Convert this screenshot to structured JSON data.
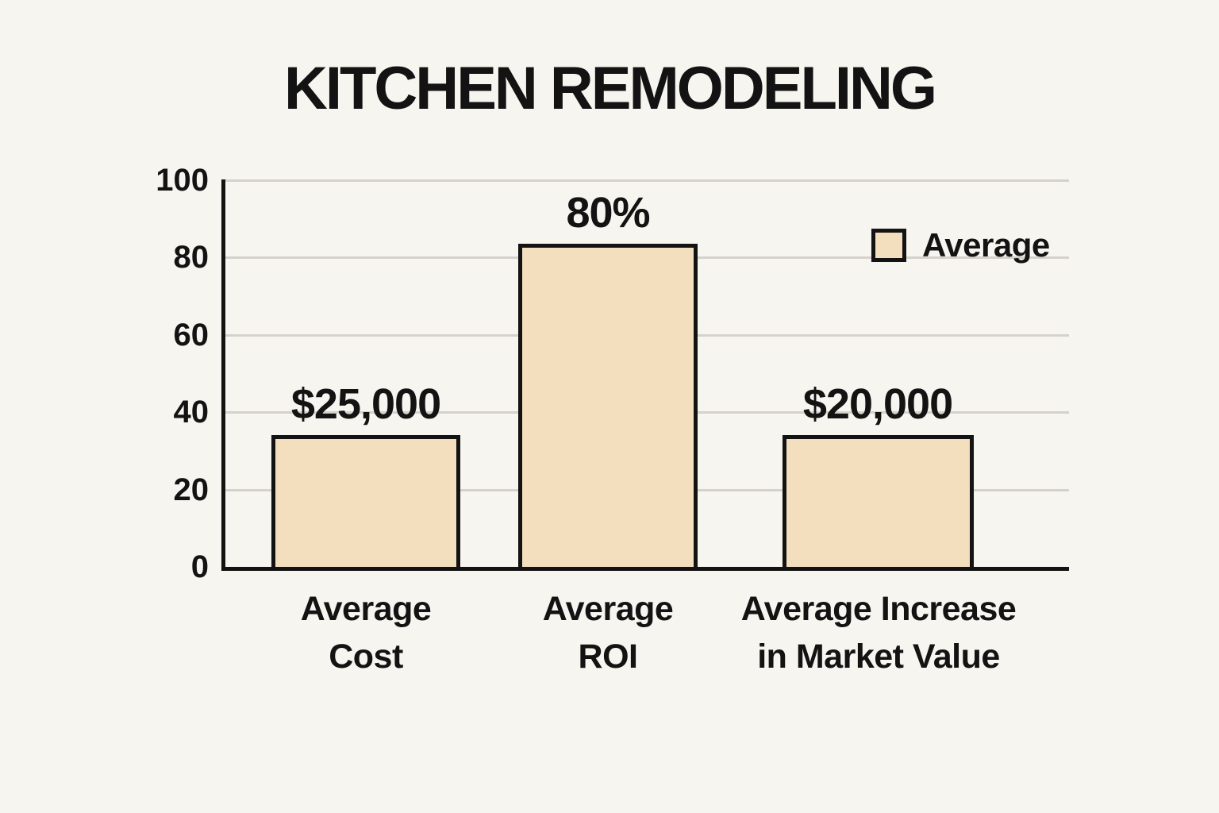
{
  "chart_data": {
    "type": "bar",
    "title": "KITCHEN REMODELING",
    "categories": [
      "Average Cost",
      "Average ROI",
      "Average Increase in Market Value"
    ],
    "values": [
      "$25,000",
      "80%",
      "$20,000"
    ],
    "series": [
      {
        "name": "Average",
        "values": [
          "$25,000",
          "80%",
          "$20,000"
        ]
      }
    ],
    "bar_heights_on_0_100_axis": [
      34,
      83.5,
      34
    ],
    "ylim": [
      0,
      100
    ],
    "yticks": [
      100,
      80,
      60,
      40,
      20,
      0
    ],
    "ytick_labels": [
      "100",
      "80",
      "60",
      "40",
      "20",
      "0"
    ],
    "grid": "horizontal gridlines on",
    "legend_label": "Average",
    "legend_position": "upper-right",
    "bars": [
      {
        "category_line1": "Average",
        "category_line2": "Cost",
        "value_label": "$25,000",
        "drawn_value": 34
      },
      {
        "category_line1": "Average",
        "category_line2": "ROI",
        "value_label": "80%",
        "drawn_value": 83.5
      },
      {
        "category_line1": "Average Increase",
        "category_line2": "in Market Value",
        "value_label": "$20,000",
        "drawn_value": 34
      }
    ],
    "colors": {
      "background": "#f7f5ef",
      "bar_fill": "#f3dfbd",
      "bar_border": "#131313",
      "gridline": "#d5d2cb",
      "axis": "#131313",
      "text": "#131313"
    }
  }
}
